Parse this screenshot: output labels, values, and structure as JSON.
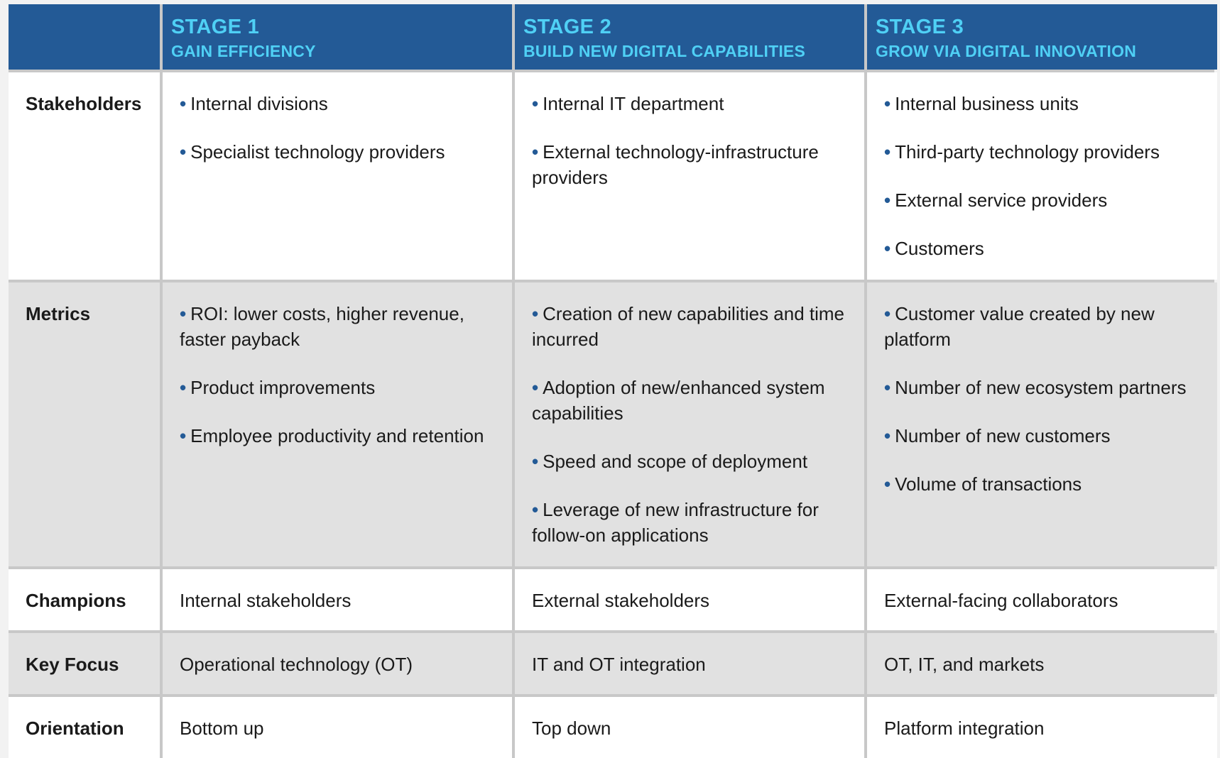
{
  "header": {
    "stages": [
      {
        "title": "STAGE 1",
        "subtitle": "GAIN EFFICIENCY"
      },
      {
        "title": "STAGE 2",
        "subtitle": "BUILD NEW DIGITAL CAPABILITIES"
      },
      {
        "title": "STAGE 3",
        "subtitle": "GROW VIA DIGITAL INNOVATION"
      }
    ]
  },
  "rows": {
    "stakeholders": {
      "label": "Stakeholders",
      "stage1": [
        "Internal divisions",
        "Specialist technology providers"
      ],
      "stage2": [
        "Internal IT department",
        "External technology-infrastructure providers"
      ],
      "stage3": [
        "Internal business units",
        "Third-party technology providers",
        "External service providers",
        "Customers"
      ]
    },
    "metrics": {
      "label": "Metrics",
      "stage1": [
        "ROI: lower costs, higher revenue, faster payback",
        "Product improvements",
        "Employee productivity and retention"
      ],
      "stage2": [
        "Creation of new capabilities and time incurred",
        "Adoption of new/enhanced system capabilities",
        "Speed and scope of deployment",
        "Leverage of new infrastructure for follow-on applications"
      ],
      "stage3": [
        "Customer value created by new platform",
        "Number of new ecosystem partners",
        "Number of new customers",
        "Volume of transactions"
      ]
    },
    "champions": {
      "label": "Champions",
      "stage1": "Internal stakeholders",
      "stage2": "External stakeholders",
      "stage3": "External-facing collaborators"
    },
    "key_focus": {
      "label": "Key Focus",
      "stage1": "Operational technology (OT)",
      "stage2": "IT and OT integration",
      "stage3": "OT, IT, and markets"
    },
    "orientation": {
      "label": "Orientation",
      "stage1": "Bottom up",
      "stage2": "Top down",
      "stage3": "Platform integration"
    }
  },
  "bullet_glyph": "•"
}
